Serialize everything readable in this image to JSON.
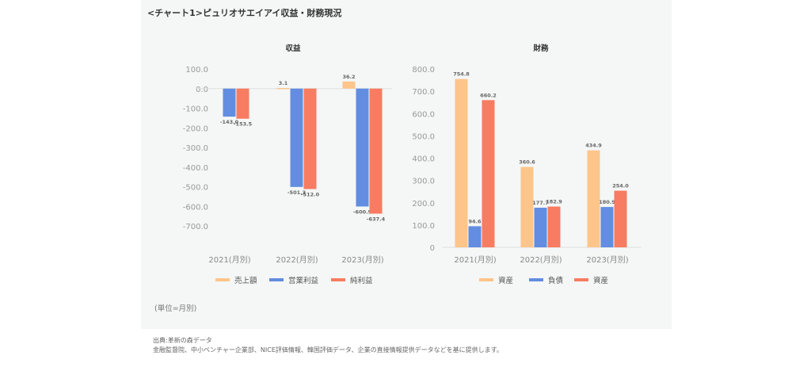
{
  "title": "<チャート1>ピュリオサエイアイ収益・財務現況",
  "unit_note": "(単位=月別)",
  "footer": {
    "source": "出典:革新の森データ",
    "note": "金融監督院、中小ベンチャー企業部、NICE評価情報、韓国評価データ、企業の直接情報提供データなどを基に提供します。"
  },
  "chart_data": [
    {
      "type": "bar",
      "title": "収益",
      "categories": [
        "2021(月別)",
        "2022(月別)",
        "2023(月別)"
      ],
      "ylim": [
        -700,
        100
      ],
      "yticks": [
        100,
        0,
        -100,
        -200,
        -300,
        -400,
        -500,
        -600,
        -700
      ],
      "ytick_labels": [
        "100.0",
        "0.0",
        "-100.0",
        "-200.0",
        "-300.0",
        "-400.0",
        "-500.0",
        "-600.0",
        "-700.0"
      ],
      "legend_position": "bottom",
      "series": [
        {
          "name": "売上額",
          "color": "#fdc58a",
          "values": [
            null,
            3.1,
            36.2
          ],
          "labels": [
            "",
            "3.1",
            "36.2"
          ]
        },
        {
          "name": "営業利益",
          "color": "#628de0",
          "values": [
            -143.0,
            -501.3,
            -600.9
          ],
          "labels": [
            "-143.0",
            "-501.3",
            "-600.9"
          ]
        },
        {
          "name": "純利益",
          "color": "#f77c61",
          "values": [
            -153.5,
            -512.0,
            -637.4
          ],
          "labels": [
            "-153.5",
            "-512.0",
            "-637.4"
          ]
        }
      ]
    },
    {
      "type": "bar",
      "title": "財務",
      "categories": [
        "2021(月別)",
        "2022(月別)",
        "2023(月別)"
      ],
      "ylim": [
        0,
        800
      ],
      "yticks": [
        800,
        700,
        600,
        500,
        400,
        300,
        200,
        100,
        0
      ],
      "ytick_labels": [
        "800.0",
        "700.0",
        "600.0",
        "500.0",
        "400.0",
        "300.0",
        "200.0",
        "100.0",
        "0"
      ],
      "legend_position": "bottom",
      "series": [
        {
          "name": "資産",
          "color": "#fdc58a",
          "values": [
            754.8,
            360.6,
            434.9
          ],
          "labels": [
            "754.8",
            "360.6",
            "434.9"
          ]
        },
        {
          "name": "負債",
          "color": "#628de0",
          "values": [
            94.6,
            177.7,
            180.9
          ],
          "labels": [
            "94.6",
            "177.7",
            "180.9"
          ]
        },
        {
          "name": "資産",
          "color": "#f77c61",
          "values": [
            660.2,
            182.9,
            254.0
          ],
          "labels": [
            "660.2",
            "182.9",
            "254.0"
          ]
        }
      ]
    }
  ]
}
